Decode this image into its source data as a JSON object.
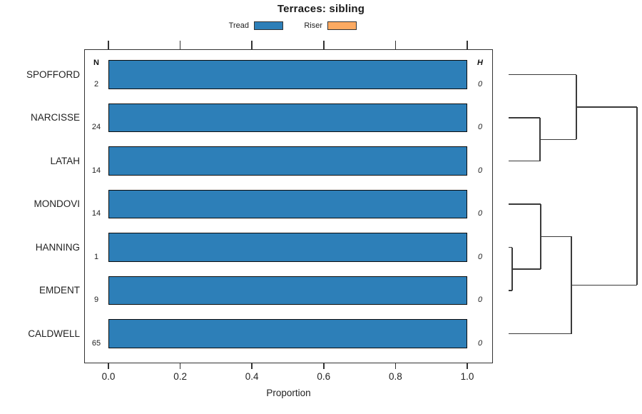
{
  "title": "Terraces: sibling",
  "legend": [
    {
      "label": "Tread",
      "color": "#2d7fb8"
    },
    {
      "label": "Riser",
      "color": "#fcaa62"
    }
  ],
  "columns": {
    "n_header": "N",
    "h_header": "H"
  },
  "chart_data": {
    "type": "bar",
    "orientation": "horizontal",
    "title": "Terraces: sibling",
    "xlabel": "Proportion",
    "xlim": [
      0,
      1
    ],
    "xticks": [
      0.0,
      0.2,
      0.4,
      0.6,
      0.8,
      1.0
    ],
    "grid": false,
    "categories": [
      "SPOFFORD",
      "NARCISSE",
      "LATAH",
      "MONDOVI",
      "HANNING",
      "EMDENT",
      "CALDWELL"
    ],
    "series": [
      {
        "name": "Tread",
        "color": "#2d7fb8",
        "values": [
          1.0,
          1.0,
          1.0,
          1.0,
          1.0,
          1.0,
          1.0
        ]
      },
      {
        "name": "Riser",
        "color": "#fcaa62",
        "values": [
          0,
          0,
          0,
          0,
          0,
          0,
          0
        ]
      }
    ],
    "n_values": [
      "2",
      "24",
      "14",
      "14",
      "1",
      "9",
      "65"
    ],
    "h_values": [
      "0",
      "0",
      "0",
      "0",
      "0",
      "0",
      "0"
    ],
    "dendrogram": {
      "position": "right",
      "root": {
        "h": 1.0,
        "children": [
          {
            "h": 0.528,
            "children": [
              {
                "leaf": "SPOFFORD"
              },
              {
                "h": 0.244,
                "children": [
                  {
                    "leaf": "NARCISSE"
                  },
                  {
                    "leaf": "LATAH"
                  }
                ]
              }
            ]
          },
          {
            "h": 0.489,
            "children": [
              {
                "h": 0.25,
                "children": [
                  {
                    "leaf": "MONDOVI"
                  },
                  {
                    "h": 0.028,
                    "children": [
                      {
                        "leaf": "HANNING"
                      },
                      {
                        "leaf": "EMDENT"
                      }
                    ]
                  }
                ]
              },
              {
                "leaf": "CALDWELL"
              }
            ]
          }
        ]
      }
    }
  }
}
